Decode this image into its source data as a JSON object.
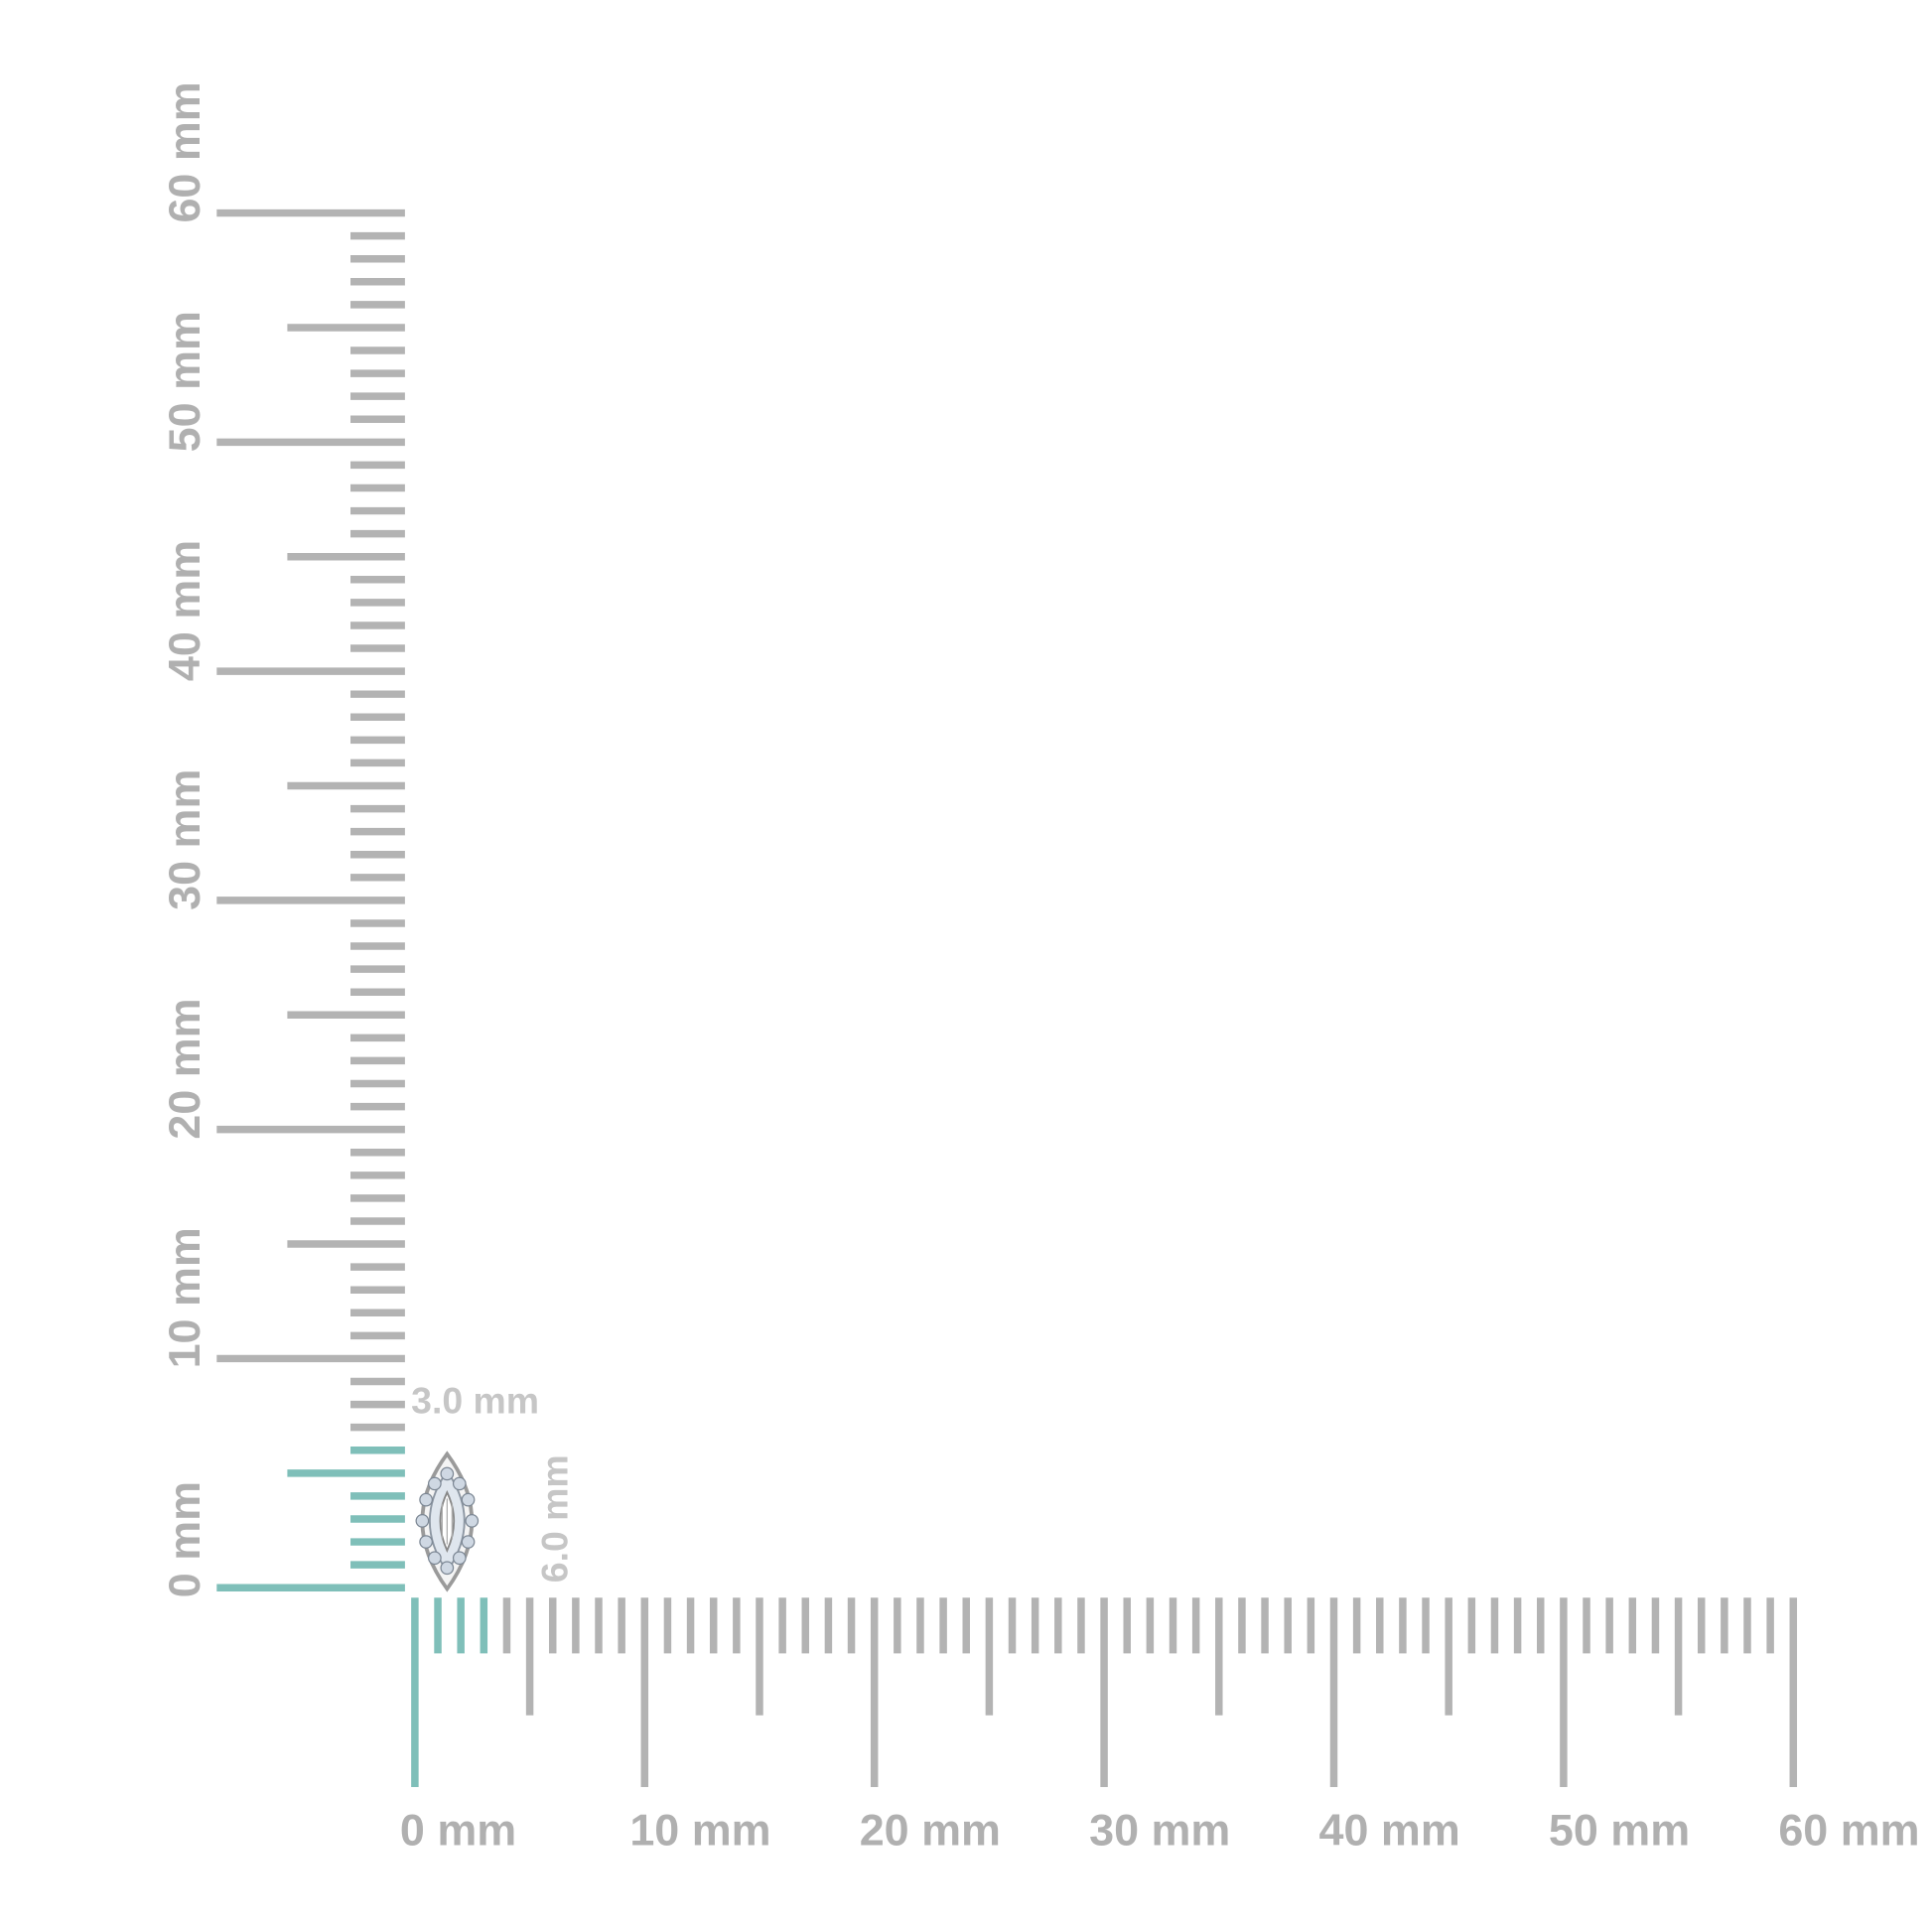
{
  "vertical_ruler": {
    "labels": [
      "0 mm",
      "10 mm",
      "20 mm",
      "30 mm",
      "40 mm",
      "50 mm",
      "60 mm"
    ]
  },
  "horizontal_ruler": {
    "labels": [
      "0 mm",
      "10 mm",
      "20 mm",
      "30 mm",
      "40 mm",
      "50 mm",
      "60 mm"
    ]
  },
  "dimensions": {
    "width": "3.0 mm",
    "height": "6.0 mm"
  }
}
